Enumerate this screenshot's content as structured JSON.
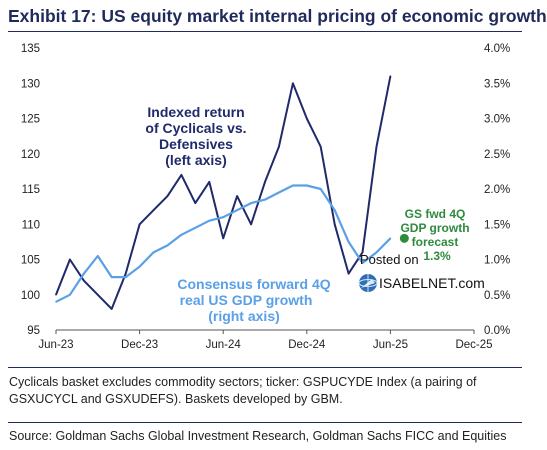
{
  "header": {
    "title": "Exhibit 17: US equity market internal pricing of economic growth"
  },
  "chart_data": {
    "type": "line",
    "x_axis": {
      "tick_labels": [
        "Jun-23",
        "Dec-23",
        "Jun-24",
        "Dec-24",
        "Jun-25",
        "Dec-25"
      ],
      "range": [
        "2023-06",
        "2025-12"
      ]
    },
    "left_axis": {
      "ylim": [
        95,
        135
      ],
      "ticks": [
        95,
        100,
        105,
        110,
        115,
        120,
        125,
        130,
        135
      ]
    },
    "right_axis": {
      "ylim": [
        0.0,
        4.0
      ],
      "ticks": [
        "0.0%",
        "0.5%",
        "1.0%",
        "1.5%",
        "2.0%",
        "2.5%",
        "3.0%",
        "3.5%",
        "4.0%"
      ]
    },
    "grid": false,
    "series": [
      {
        "name": "Indexed return of Cyclicals vs. Defensives (left axis)",
        "axis": "left",
        "color": "#1f2a6b",
        "x": [
          "2023-06",
          "2023-07",
          "2023-08",
          "2023-09",
          "2023-10",
          "2023-11",
          "2023-12",
          "2024-01",
          "2024-02",
          "2024-03",
          "2024-04",
          "2024-05",
          "2024-06",
          "2024-07",
          "2024-08",
          "2024-09",
          "2024-10",
          "2024-11",
          "2024-12",
          "2025-01",
          "2025-02",
          "2025-03",
          "2025-04",
          "2025-05",
          "2025-06"
        ],
        "values": [
          100,
          105,
          102,
          100,
          98,
          103,
          110,
          112,
          114,
          117,
          113,
          116,
          108,
          114,
          110,
          116,
          121,
          130,
          125,
          121,
          110,
          103,
          106,
          121,
          131
        ]
      },
      {
        "name": "Consensus forward 4Q real US GDP growth (right axis)",
        "axis": "right",
        "color": "#5aa0e6",
        "x": [
          "2023-06",
          "2023-07",
          "2023-08",
          "2023-09",
          "2023-10",
          "2023-11",
          "2023-12",
          "2024-01",
          "2024-02",
          "2024-03",
          "2024-04",
          "2024-05",
          "2024-06",
          "2024-07",
          "2024-08",
          "2024-09",
          "2024-10",
          "2024-11",
          "2024-12",
          "2025-01",
          "2025-02",
          "2025-03",
          "2025-04",
          "2025-05",
          "2025-06"
        ],
        "values": [
          0.4,
          0.5,
          0.8,
          1.05,
          0.75,
          0.75,
          0.9,
          1.1,
          1.2,
          1.35,
          1.45,
          1.55,
          1.6,
          1.7,
          1.8,
          1.85,
          1.95,
          2.05,
          2.05,
          2.0,
          1.7,
          1.25,
          0.95,
          1.1,
          1.3
        ]
      },
      {
        "name": "GS fwd 4Q GDP growth forecast",
        "axis": "right",
        "color": "#2e8b3e",
        "x": [
          "2025-07"
        ],
        "values": [
          1.3
        ]
      }
    ],
    "annotations": {
      "cyclicals": [
        "Indexed return",
        "of Cyclicals vs.",
        "Defensives",
        "(left axis)"
      ],
      "gdp": [
        "Consensus forward 4Q",
        "real US GDP growth",
        "(right axis)"
      ],
      "gs": [
        "GS fwd 4Q",
        "GDP growth",
        "forecast",
        "1.3%"
      ]
    }
  },
  "watermark": {
    "line1": "Posted on",
    "line2": "ISABELNET.com"
  },
  "footnote": "Cyclicals basket excludes commodity sectors; ticker: GSPUCYDE Index (a pairing of GSXUCYCL and GSXUDEFS). Baskets developed by GBM.",
  "source": "Source: Goldman Sachs Global Investment Research, Goldman Sachs FICC and Equities"
}
